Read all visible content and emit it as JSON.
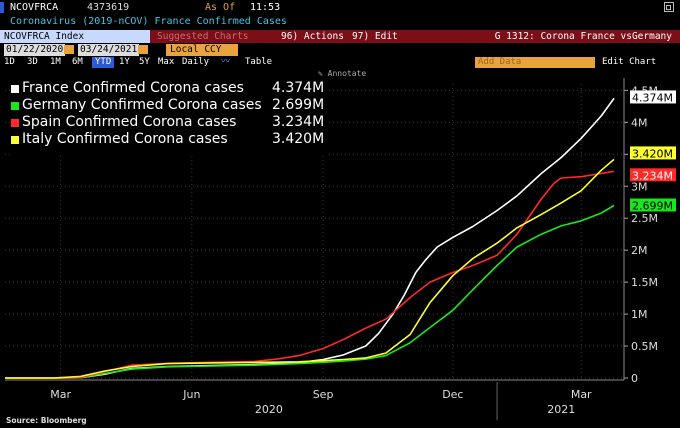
{
  "header": {
    "ticker": "NCOVFRCA",
    "value": "4373619",
    "asof_label": "As Of",
    "time": "11:53",
    "subtitle": "Coronavirus (2019-nCOV) France Confirmed Cases"
  },
  "toolbar": {
    "index_field": "NCOVFRCA Index",
    "suggested": "Suggested Charts",
    "actions": "96) Actions",
    "edit": "97) Edit",
    "right_title": "G 1312: Corona France vsGermany",
    "start_date": "01/22/2020",
    "end_date": "03/24/2021",
    "currency": "Local CCY",
    "periods": [
      "1D",
      "3D",
      "1M",
      "6M",
      "YTD",
      "1Y",
      "5Y",
      "Max"
    ],
    "frequency": "Daily",
    "table": "Table",
    "add_data": "Add Data",
    "edit_chart": "Edit Chart",
    "annotate": "Annotate"
  },
  "colors": {
    "france": "#ffffff",
    "germany": "#19e61d",
    "spain": "#ff2a2a",
    "italy": "#ffff2e",
    "accent": "#e8a33c",
    "bar": "#7a0f17"
  },
  "chart_data": {
    "type": "line",
    "ylim": [
      0,
      4600000
    ],
    "y_ticks": [
      0,
      500000,
      1000000,
      1500000,
      2000000,
      2500000,
      3000000,
      3500000,
      4000000,
      4500000
    ],
    "y_tick_labels": [
      "0",
      "0.5M",
      "1M",
      "1.5M",
      "2M",
      "2.5M",
      "3M",
      "3.5M",
      "4M",
      "4.5M"
    ],
    "x_ticks": [
      "Mar",
      "Jun",
      "Sep",
      "Dec",
      "Mar"
    ],
    "x_years": [
      "2020",
      "2021"
    ],
    "series": [
      {
        "name": "France Confirmed Corona cases",
        "last": "4.374M",
        "value": 4374000,
        "x": [
          "2020-01-22",
          "2020-03-01",
          "2020-03-15",
          "2020-04-01",
          "2020-04-20",
          "2020-05-15",
          "2020-06-15",
          "2020-07-15",
          "2020-08-15",
          "2020-09-01",
          "2020-09-15",
          "2020-10-01",
          "2020-10-10",
          "2020-10-20",
          "2020-10-28",
          "2020-11-05",
          "2020-11-12",
          "2020-11-20",
          "2020-12-01",
          "2020-12-15",
          "2021-01-01",
          "2021-01-15",
          "2021-02-01",
          "2021-02-15",
          "2021-03-01",
          "2021-03-15",
          "2021-03-24"
        ],
        "y": [
          0,
          200,
          5000,
          60000,
          150000,
          180000,
          195000,
          210000,
          240000,
          290000,
          360000,
          500000,
          700000,
          1000000,
          1300000,
          1650000,
          1850000,
          2050000,
          2200000,
          2370000,
          2620000,
          2850000,
          3200000,
          3450000,
          3750000,
          4100000,
          4374000
        ]
      },
      {
        "name": "Germany Confirmed Corona cases",
        "last": "2.699M",
        "value": 2699000,
        "x": [
          "2020-01-22",
          "2020-03-01",
          "2020-03-15",
          "2020-04-01",
          "2020-04-20",
          "2020-05-15",
          "2020-06-15",
          "2020-07-15",
          "2020-08-15",
          "2020-09-01",
          "2020-09-15",
          "2020-10-01",
          "2020-10-15",
          "2020-11-01",
          "2020-11-15",
          "2020-12-01",
          "2020-12-15",
          "2021-01-01",
          "2021-01-15",
          "2021-02-01",
          "2021-02-15",
          "2021-03-01",
          "2021-03-15",
          "2021-03-24"
        ],
        "y": [
          0,
          100,
          5000,
          70000,
          140000,
          175000,
          188000,
          200000,
          225000,
          245000,
          265000,
          295000,
          350000,
          550000,
          790000,
          1060000,
          1380000,
          1760000,
          2050000,
          2250000,
          2380000,
          2460000,
          2580000,
          2699000
        ]
      },
      {
        "name": "Spain Confirmed Corona cases",
        "last": "3.234M",
        "value": 3234000,
        "x": [
          "2020-01-22",
          "2020-03-01",
          "2020-03-15",
          "2020-04-01",
          "2020-04-20",
          "2020-05-15",
          "2020-06-15",
          "2020-07-15",
          "2020-08-01",
          "2020-08-15",
          "2020-09-01",
          "2020-09-15",
          "2020-10-01",
          "2020-10-15",
          "2020-11-01",
          "2020-11-15",
          "2020-12-01",
          "2020-12-15",
          "2021-01-01",
          "2021-01-15",
          "2021-02-01",
          "2021-02-10",
          "2021-02-15",
          "2021-03-01",
          "2021-03-15",
          "2021-03-24"
        ],
        "y": [
          0,
          100,
          8000,
          100000,
          200000,
          230000,
          245000,
          260000,
          300000,
          350000,
          460000,
          600000,
          780000,
          920000,
          1260000,
          1500000,
          1650000,
          1760000,
          1920000,
          2250000,
          2800000,
          3050000,
          3130000,
          3150000,
          3200000,
          3234000
        ]
      },
      {
        "name": "Italy Confirmed Corona cases",
        "last": "3.420M",
        "value": 3420000,
        "x": [
          "2020-01-22",
          "2020-02-25",
          "2020-03-15",
          "2020-04-01",
          "2020-04-20",
          "2020-05-15",
          "2020-06-15",
          "2020-07-15",
          "2020-08-15",
          "2020-09-01",
          "2020-09-15",
          "2020-10-01",
          "2020-10-15",
          "2020-11-01",
          "2020-11-15",
          "2020-12-01",
          "2020-12-15",
          "2021-01-01",
          "2021-01-15",
          "2021-02-01",
          "2021-02-15",
          "2021-03-01",
          "2021-03-15",
          "2021-03-24"
        ],
        "y": [
          0,
          300,
          25000,
          110000,
          180000,
          225000,
          237000,
          244000,
          253000,
          270000,
          290000,
          315000,
          390000,
          680000,
          1180000,
          1600000,
          1870000,
          2110000,
          2350000,
          2560000,
          2740000,
          2930000,
          3250000,
          3420000
        ]
      }
    ]
  },
  "source": "Source: Bloomberg"
}
